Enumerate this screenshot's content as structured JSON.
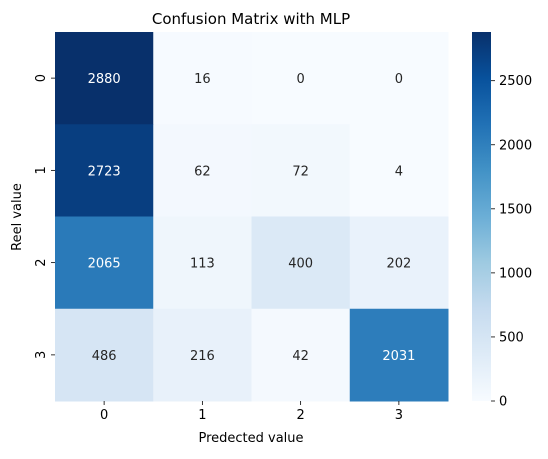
{
  "chart_data": {
    "type": "heatmap",
    "title": "Confusion Matrix with MLP",
    "xlabel": "Predected value",
    "ylabel": "Reel value",
    "x_categories": [
      "0",
      "1",
      "2",
      "3"
    ],
    "y_categories": [
      "0",
      "1",
      "2",
      "3"
    ],
    "values": [
      [
        2880,
        16,
        0,
        0
      ],
      [
        2723,
        62,
        72,
        4
      ],
      [
        2065,
        113,
        400,
        202
      ],
      [
        486,
        216,
        42,
        2031
      ]
    ],
    "colorscale": "Blues",
    "vmin": 0,
    "vmax": 2880,
    "colorbar_ticks": [
      0,
      500,
      1000,
      1500,
      2000,
      2500
    ],
    "colorbar_tick_labels": [
      "0",
      "500",
      "1000",
      "1500",
      "2000",
      "2500"
    ]
  }
}
